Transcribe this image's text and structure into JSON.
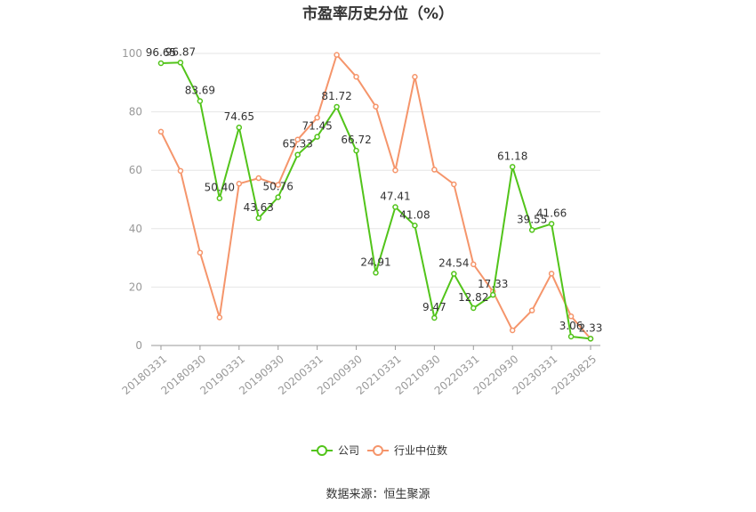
{
  "chart_data": {
    "type": "line",
    "title": "市盈率历史分位（%）",
    "xlabel": "",
    "ylabel": "",
    "ylim": [
      0,
      100
    ],
    "yticks": [
      0,
      20,
      40,
      60,
      80,
      100
    ],
    "grid": true,
    "legend_position": "bottom-center",
    "x": [
      "20180331",
      "20180630",
      "20180930",
      "20181231",
      "20190331",
      "20190630",
      "20190930",
      "20191231",
      "20200331",
      "20200630",
      "20200930",
      "20201231",
      "20210331",
      "20210630",
      "20210930",
      "20211231",
      "20220331",
      "20220630",
      "20220930",
      "20221231",
      "20230331",
      "20230630",
      "20230825"
    ],
    "x_tick_labels": [
      "20180331",
      "20180930",
      "20190331",
      "20190930",
      "20200331",
      "20200930",
      "20210331",
      "20210930",
      "20220331",
      "20220930",
      "20230331",
      "20230825"
    ],
    "series": [
      {
        "name": "公司",
        "color": "#52c41a",
        "show_labels": true,
        "values": [
          96.65,
          96.87,
          83.69,
          50.4,
          74.65,
          43.63,
          50.76,
          65.33,
          71.45,
          81.72,
          66.72,
          24.91,
          47.41,
          41.08,
          9.47,
          24.54,
          12.82,
          17.33,
          61.18,
          39.55,
          41.66,
          3.06,
          2.33
        ]
      },
      {
        "name": "行业中位数",
        "color": "#f5956b",
        "show_labels": false,
        "values": [
          73.2,
          59.8,
          31.8,
          9.6,
          55.4,
          57.3,
          55.0,
          70.5,
          78.0,
          99.5,
          92.0,
          81.8,
          60.0,
          92.0,
          60.2,
          55.2,
          27.8,
          18.5,
          5.2,
          12.0,
          24.6,
          10.0,
          2.33
        ]
      }
    ]
  },
  "source_text": "数据来源：恒生聚源"
}
